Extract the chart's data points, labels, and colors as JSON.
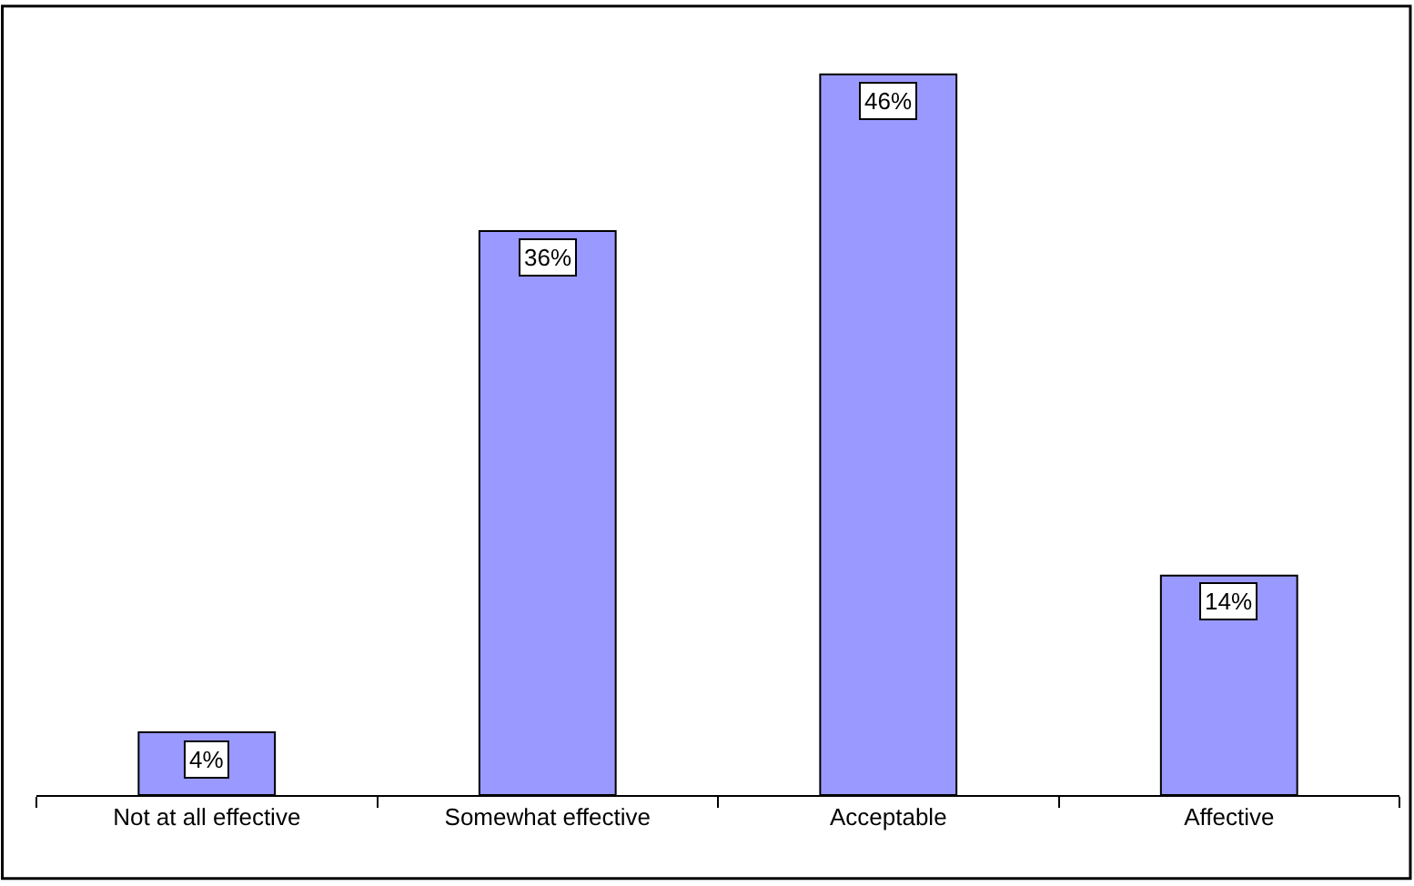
{
  "chart_data": {
    "type": "bar",
    "categories": [
      "Not at all effective",
      "Somewhat effective",
      "Acceptable",
      "Affective"
    ],
    "values": [
      4,
      36,
      46,
      14
    ],
    "value_labels": [
      "4%",
      "36%",
      "46%",
      "14%"
    ],
    "color": "#9999ff"
  }
}
